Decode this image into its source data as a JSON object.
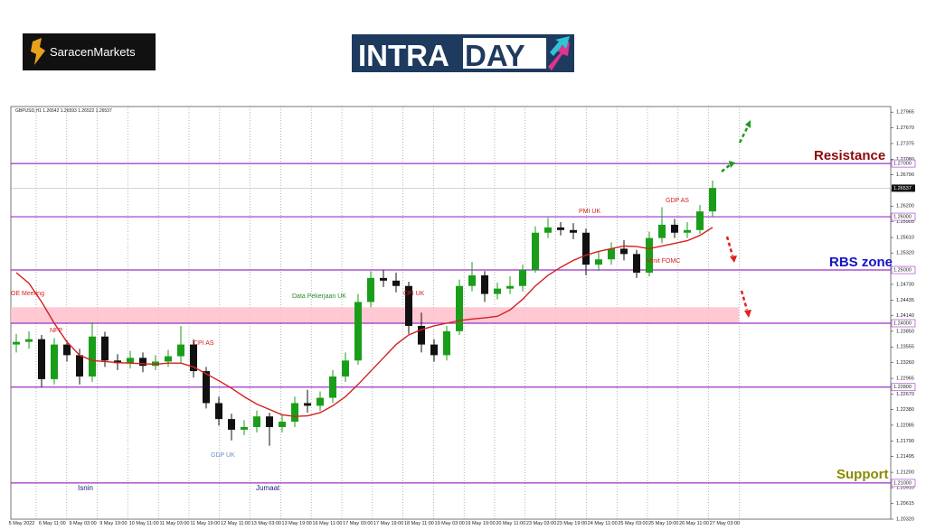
{
  "header": {
    "brand": "SaracenMarkets",
    "banner_left": "INTRA",
    "banner_right": "DAY"
  },
  "chart_data": {
    "type": "candlestick",
    "title": "GBPUSD,H1 1.26542 1.26593 1.26522 1.26537",
    "open": [
      1.236,
      1.2365,
      1.237,
      1.2295,
      1.236,
      1.234,
      1.23,
      1.2375,
      1.233,
      1.2325,
      1.2335,
      1.232,
      1.2328,
      1.2338,
      1.236,
      1.231,
      1.225,
      1.222,
      1.22,
      1.2205,
      1.2225,
      1.2205,
      1.2215,
      1.225,
      1.2245,
      1.226,
      1.23,
      1.233,
      1.244,
      1.2485,
      1.248,
      1.247,
      1.2395,
      1.236,
      1.234,
      1.2385,
      1.247,
      1.249,
      1.2455,
      1.2465,
      1.247,
      1.25,
      1.257,
      1.258,
      1.2575,
      1.257,
      1.251,
      1.252,
      1.254,
      1.253,
      1.2495,
      1.256,
      1.2585,
      1.257,
      1.2575,
      1.261
    ],
    "high": [
      1.238,
      1.2385,
      1.2378,
      1.2372,
      1.2368,
      1.2352,
      1.2402,
      1.2384,
      1.2342,
      1.2348,
      1.2345,
      1.234,
      1.235,
      1.2395,
      1.237,
      1.2318,
      1.2262,
      1.223,
      1.2218,
      1.2236,
      1.2232,
      1.2228,
      1.2262,
      1.2275,
      1.2272,
      1.2312,
      1.2345,
      1.2455,
      1.2498,
      1.25,
      1.2495,
      1.2478,
      1.242,
      1.237,
      1.2395,
      1.2482,
      1.2515,
      1.2498,
      1.2476,
      1.2488,
      1.251,
      1.2582,
      1.2598,
      1.259,
      1.2588,
      1.2578,
      1.2535,
      1.2552,
      1.2556,
      1.2538,
      1.2572,
      1.2618,
      1.2596,
      1.259,
      1.2622,
      1.2668
    ],
    "low": [
      1.2345,
      1.2352,
      1.228,
      1.2285,
      1.2328,
      1.2285,
      1.229,
      1.2318,
      1.2312,
      1.2315,
      1.2308,
      1.2312,
      1.2318,
      1.2325,
      1.2298,
      1.224,
      1.2208,
      1.218,
      1.219,
      1.2195,
      1.217,
      1.2195,
      1.2205,
      1.2232,
      1.2235,
      1.225,
      1.229,
      1.2322,
      1.243,
      1.2468,
      1.2458,
      1.238,
      1.2345,
      1.2328,
      1.233,
      1.2378,
      1.246,
      1.244,
      1.2445,
      1.2455,
      1.246,
      1.2495,
      1.256,
      1.2565,
      1.2558,
      1.249,
      1.2498,
      1.251,
      1.2518,
      1.2485,
      1.2488,
      1.255,
      1.256,
      1.256,
      1.2568,
      1.26
    ],
    "close": [
      1.2365,
      1.237,
      1.2295,
      1.236,
      1.234,
      1.23,
      1.2375,
      1.233,
      1.2325,
      1.2335,
      1.232,
      1.2328,
      1.2338,
      1.236,
      1.231,
      1.225,
      1.222,
      1.22,
      1.2205,
      1.2225,
      1.2205,
      1.2215,
      1.225,
      1.2245,
      1.226,
      1.23,
      1.233,
      1.244,
      1.2485,
      1.248,
      1.247,
      1.2395,
      1.236,
      1.234,
      1.2385,
      1.247,
      1.249,
      1.2455,
      1.2465,
      1.247,
      1.25,
      1.257,
      1.258,
      1.2575,
      1.257,
      1.251,
      1.252,
      1.254,
      1.253,
      1.2495,
      1.256,
      1.2585,
      1.257,
      1.2575,
      1.261,
      1.2654
    ],
    "ma": [
      1.2495,
      1.2475,
      1.244,
      1.24,
      1.2365,
      1.234,
      1.233,
      1.2328,
      1.2326,
      1.2325,
      1.2324,
      1.2323,
      1.2325,
      1.2325,
      1.2318,
      1.2305,
      1.2292,
      1.2278,
      1.2262,
      1.2248,
      1.2238,
      1.2228,
      1.2225,
      1.2226,
      1.2232,
      1.2245,
      1.2262,
      1.2285,
      1.231,
      1.2335,
      1.236,
      1.2378,
      1.2388,
      1.2395,
      1.24,
      1.2405,
      1.2408,
      1.241,
      1.2413,
      1.2425,
      1.2445,
      1.247,
      1.249,
      1.2505,
      1.2518,
      1.2528,
      1.2535,
      1.254,
      1.2545,
      1.2544,
      1.254,
      1.2545,
      1.255,
      1.2555,
      1.2565,
      1.258
    ],
    "up_color": "#1a9e1a",
    "down_color": "#111111",
    "ma_color": "#d42020",
    "x_labels": [
      "5 May 2022",
      "6 May 11:00",
      "9 May 03:00",
      "9 May 19:00",
      "10 May 11:00",
      "11 May 03:00",
      "11 May 19:00",
      "12 May 11:00",
      "13 May 03:00",
      "13 May 19:00",
      "16 May 11:00",
      "17 May 03:00",
      "17 May 19:00",
      "18 May 11:00",
      "19 May 03:00",
      "19 May 19:00",
      "20 May 11:00",
      "23 May 03:00",
      "23 May 19:00",
      "24 May 11:00",
      "25 May 03:00",
      "25 May 19:00",
      "26 May 11:00",
      "27 May 03:00"
    ],
    "ylim": [
      1.2032,
      1.2807
    ],
    "yticks": [
      {
        "value": 1.2032,
        "label": "1.20320"
      },
      1.20615,
      {
        "value": 1.2091,
        "label": "1.20910"
      },
      {
        "value": 1.212,
        "label": "1.21200"
      },
      1.21495,
      {
        "value": 1.2179,
        "label": "1.21790"
      },
      1.22085,
      {
        "value": 1.2238,
        "label": "1.22380"
      },
      {
        "value": 1.2267,
        "label": "1.22670"
      },
      1.22965,
      {
        "value": 1.2326,
        "label": "1.23260"
      },
      1.23555,
      {
        "value": 1.2385,
        "label": "1.23850"
      },
      {
        "value": 1.2414,
        "label": "1.24140"
      },
      1.24435,
      {
        "value": 1.2473,
        "label": "1.24730"
      },
      1.25025,
      {
        "value": 1.2532,
        "label": "1.25320"
      },
      {
        "value": 1.2561,
        "label": "1.25610"
      },
      1.25905,
      {
        "value": 1.262,
        "label": "1.26200"
      },
      1.26495,
      {
        "value": 1.2679,
        "label": "1.26790"
      },
      {
        "value": 1.2708,
        "label": "1.27080"
      },
      1.27375,
      {
        "value": 1.2767,
        "label": "1.27670"
      },
      1.27965
    ],
    "levels": [
      {
        "value": 1.27,
        "label": "1.27000"
      },
      {
        "value": 1.26,
        "label": "1.26000"
      },
      {
        "value": 1.25,
        "label": "1.25000"
      },
      {
        "value": 1.24,
        "label": "1.24000"
      },
      {
        "value": 1.228,
        "label": "1.22800"
      },
      {
        "value": 1.21,
        "label": "1.21000"
      }
    ],
    "level_color": "#9b30c8",
    "zone": [
      1.24,
      1.243
    ],
    "zone_color": "#ffc0cb",
    "current_price": {
      "value": 1.26537,
      "label": "1.26537"
    },
    "annotations": [
      "OE Meeting",
      "NFP",
      "CPI AS",
      "GDP UK",
      "Data Pekerjaan UK",
      "CPI UK",
      "PMI UK",
      "GDP AS",
      "Minit FOMC",
      "Isnin",
      "Jumaat",
      "Resistance",
      "RBS zone",
      "Support"
    ]
  }
}
